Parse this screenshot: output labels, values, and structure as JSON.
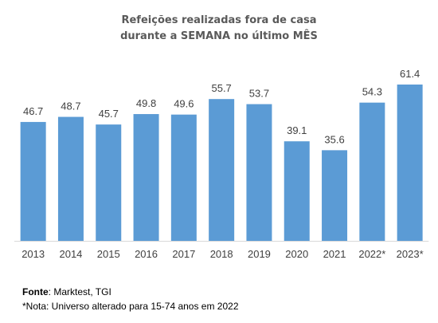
{
  "chart_data": {
    "type": "bar",
    "title_line1": "Refeições realizadas fora de casa",
    "title_line2": "durante a SEMANA no último MÊS",
    "xlabel": "",
    "ylabel": "",
    "categories": [
      "2013",
      "2014",
      "2015",
      "2016",
      "2017",
      "2018",
      "2019",
      "2020",
      "2021",
      "2022*",
      "2023*"
    ],
    "values": [
      46.7,
      48.7,
      45.7,
      49.8,
      49.6,
      55.7,
      53.7,
      39.1,
      35.6,
      54.3,
      61.4
    ],
    "data_labels": [
      "46.7",
      "48.7",
      "45.7",
      "49.8",
      "49.6",
      "55.7",
      "53.7",
      "39.1",
      "35.6",
      "54.3",
      "61.4"
    ],
    "ylim": [
      0,
      61.4
    ],
    "grid": false,
    "legend": "none",
    "bar_color": "#5b9bd5"
  },
  "footer": {
    "source_label": "Fonte",
    "source_text": ": Marktest, TGI",
    "note": "*Nota: Universo alterado para 15-74 anos em 2022"
  }
}
